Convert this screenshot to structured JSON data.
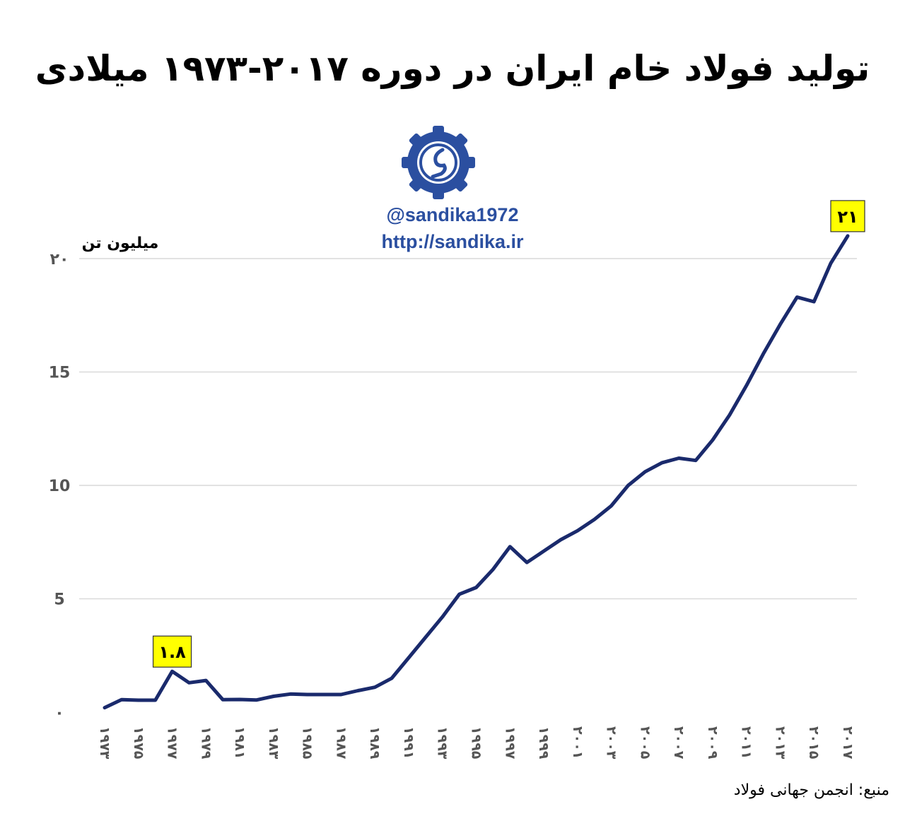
{
  "title": "تولید فولاد خام ایران در دوره ۲۰۱۷-۱۹۷۳ میلادی",
  "branding": {
    "handle": "@sandika1972",
    "website": "http://sandika.ir",
    "logo_icon": "sandika-logo-icon",
    "brand_color": "#2b4fa0"
  },
  "source": "منبع: انجمن جهانی فولاد",
  "colors": {
    "line": "#1a2a6c",
    "grid": "#d9d9d9",
    "callout_fill": "#ffff00"
  },
  "chart_data": {
    "type": "line",
    "ylabel": "میلیون تن",
    "ylim": [
      0,
      20
    ],
    "y_ticks": [
      {
        "value": 0,
        "label": "۰"
      },
      {
        "value": 5,
        "label": "5"
      },
      {
        "value": 10,
        "label": "10"
      },
      {
        "value": 15,
        "label": "15"
      },
      {
        "value": 20,
        "label": "۲۰"
      }
    ],
    "x_tick_labels": [
      "۱۹۷۳",
      "۱۹۷۵",
      "۱۹۷۷",
      "۱۹۷۹",
      "۱۹۸۱",
      "۱۹۸۳",
      "۱۹۸۵",
      "۱۹۸۷",
      "۱۹۸۹",
      "۱۹۹۱",
      "۱۹۹۳",
      "۱۹۹۵",
      "۱۹۹۷",
      "۱۹۹۹",
      "۲۰۰۱",
      "۲۰۰۳",
      "۲۰۰۵",
      "۲۰۰۷",
      "۲۰۰۹",
      "۲۰۱۱",
      "۲۰۱۳",
      "۲۰۱۵",
      "۲۰۱۷"
    ],
    "grid": true,
    "series": [
      {
        "x": [
          1973,
          1974,
          1975,
          1976,
          1977,
          1978,
          1979,
          1980,
          1981,
          1982,
          1983,
          1984,
          1985,
          1986,
          1987,
          1988,
          1989,
          1990,
          1991,
          1992,
          1993,
          1994,
          1995,
          1996,
          1997,
          1998,
          1999,
          2000,
          2001,
          2002,
          2003,
          2004,
          2005,
          2006,
          2007,
          2008,
          2009,
          2010,
          2011,
          2012,
          2013,
          2014,
          2015,
          2016,
          2017
        ],
        "values": [
          0.2,
          0.55,
          0.53,
          0.53,
          1.8,
          1.3,
          1.4,
          0.55,
          0.56,
          0.54,
          0.7,
          0.8,
          0.78,
          0.78,
          0.78,
          0.95,
          1.1,
          1.5,
          2.4,
          3.3,
          4.2,
          5.2,
          5.5,
          6.3,
          7.3,
          6.6,
          7.1,
          7.6,
          8.0,
          8.5,
          9.1,
          10.0,
          10.6,
          11.0,
          11.2,
          11.1,
          12.0,
          13.1,
          14.4,
          15.8,
          17.1,
          18.3,
          18.1,
          19.8,
          21.0
        ]
      }
    ],
    "annotations": [
      {
        "x": 1977,
        "y": 1.8,
        "label": "۱.۸"
      },
      {
        "x": 2017,
        "y": 21.0,
        "label": "۲۱"
      }
    ]
  }
}
